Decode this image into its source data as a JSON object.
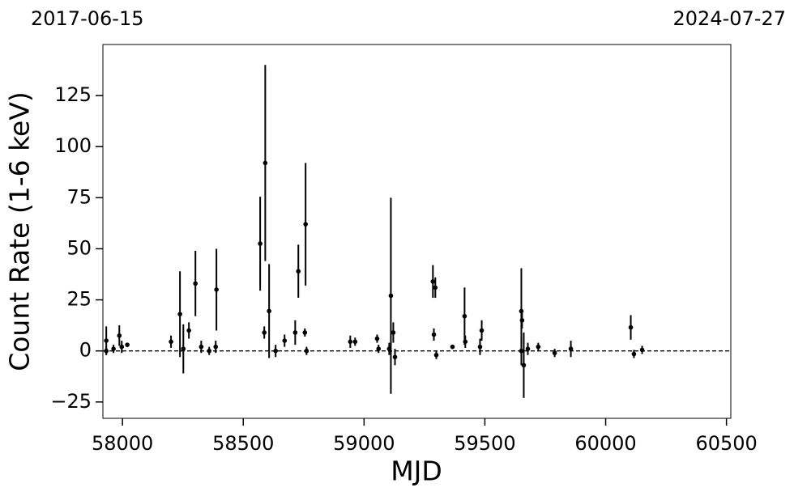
{
  "chart_data": {
    "type": "errorbar",
    "date_labels": [
      "2017-06-15",
      "2024-07-27"
    ],
    "x_label": "MJD",
    "y_label": "Count Rate (1-6 keV)",
    "color": "#000000",
    "hline": 0,
    "xlim": [
      57919,
      60518
    ],
    "ylim": [
      -33,
      150
    ],
    "xticks": [
      58000,
      58500,
      59000,
      59500,
      60000,
      60500
    ],
    "yticks": [
      {
        "value": -25,
        "label": "−25"
      },
      0,
      25,
      50,
      75,
      100,
      125
    ],
    "x": [
      57933,
      57933,
      57963,
      57987,
      57997,
      58020,
      58201,
      58238,
      58252,
      58275,
      58302,
      58326,
      58359,
      58389,
      58386,
      58570,
      58591,
      58587,
      58607,
      58634,
      58671,
      58728,
      58715,
      58758,
      58755,
      58762,
      58943,
      58963,
      59054,
      59060,
      59104,
      59111,
      59121,
      59128,
      59285,
      59295,
      59289,
      59299,
      59366,
      59416,
      59419,
      59487,
      59480,
      59651,
      59654,
      59661,
      59651,
      59678,
      59721,
      59789,
      59856,
      60104,
      60117,
      60151
    ],
    "values": [
      5,
      0,
      1,
      7.5,
      2,
      3,
      4.5,
      18,
      1,
      10,
      33,
      2,
      0,
      30,
      2,
      52.5,
      92,
      9,
      19.5,
      0,
      5,
      39,
      9,
      62,
      9,
      0,
      4.5,
      4.5,
      6,
      1,
      1,
      27,
      9,
      -3,
      34,
      31,
      8,
      -2,
      2,
      17,
      4.5,
      10,
      2,
      19.5,
      15,
      -7,
      0,
      1,
      2,
      -1,
      1,
      11.5,
      -1.5,
      0.5
    ],
    "errors": [
      7,
      2,
      2,
      5,
      3,
      1,
      3,
      21,
      12,
      4,
      16,
      3,
      2,
      20,
      3,
      23,
      48,
      3,
      23,
      3,
      3,
      13,
      6,
      30,
      2,
      2,
      3,
      2,
      2,
      2,
      3,
      48,
      5,
      4,
      8,
      5,
      3,
      2,
      1,
      14,
      3,
      5,
      4,
      21,
      4,
      16,
      7,
      3,
      2,
      2,
      4,
      6,
      2,
      2
    ]
  }
}
